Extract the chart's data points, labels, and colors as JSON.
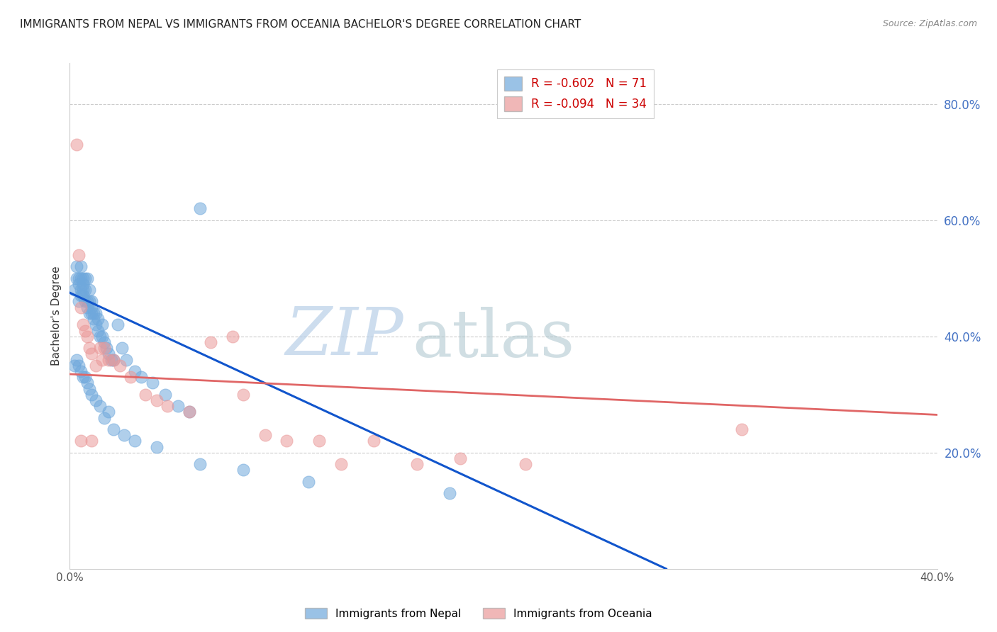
{
  "title": "IMMIGRANTS FROM NEPAL VS IMMIGRANTS FROM OCEANIA BACHELOR'S DEGREE CORRELATION CHART",
  "source": "Source: ZipAtlas.com",
  "ylabel": "Bachelor's Degree",
  "xmin": 0.0,
  "xmax": 0.4,
  "ymin": 0.0,
  "ymax": 0.87,
  "x_ticks": [
    0.0,
    0.1,
    0.2,
    0.3,
    0.4
  ],
  "x_tick_labels": [
    "0.0%",
    "",
    "",
    "",
    "40.0%"
  ],
  "y_ticks_right": [
    0.2,
    0.4,
    0.6,
    0.8
  ],
  "y_tick_labels_right": [
    "20.0%",
    "40.0%",
    "60.0%",
    "80.0%"
  ],
  "nepal_color": "#6fa8dc",
  "oceania_color": "#ea9999",
  "nepal_line_color": "#1155cc",
  "oceania_line_color": "#e06666",
  "legend_R_nepal": "R = -0.602",
  "legend_N_nepal": "N = 71",
  "legend_R_oceania": "R = -0.094",
  "legend_N_oceania": "N = 34",
  "legend_label_nepal": "Immigrants from Nepal",
  "legend_label_oceania": "Immigrants from Oceania",
  "nepal_line_x0": 0.0,
  "nepal_line_y0": 0.475,
  "nepal_line_x1": 0.275,
  "nepal_line_y1": 0.0,
  "oceania_line_x0": 0.0,
  "oceania_line_y0": 0.335,
  "oceania_line_x1": 0.4,
  "oceania_line_y1": 0.265,
  "nepal_x": [
    0.002,
    0.003,
    0.003,
    0.004,
    0.004,
    0.004,
    0.005,
    0.005,
    0.005,
    0.005,
    0.006,
    0.006,
    0.006,
    0.006,
    0.007,
    0.007,
    0.007,
    0.008,
    0.008,
    0.008,
    0.009,
    0.009,
    0.009,
    0.01,
    0.01,
    0.01,
    0.011,
    0.011,
    0.012,
    0.012,
    0.013,
    0.013,
    0.014,
    0.015,
    0.015,
    0.016,
    0.017,
    0.018,
    0.019,
    0.02,
    0.022,
    0.024,
    0.026,
    0.03,
    0.033,
    0.038,
    0.044,
    0.05,
    0.055,
    0.06,
    0.002,
    0.003,
    0.004,
    0.005,
    0.006,
    0.007,
    0.008,
    0.009,
    0.01,
    0.012,
    0.014,
    0.016,
    0.018,
    0.02,
    0.025,
    0.03,
    0.04,
    0.06,
    0.08,
    0.11,
    0.175
  ],
  "nepal_y": [
    0.48,
    0.5,
    0.52,
    0.46,
    0.49,
    0.5,
    0.48,
    0.47,
    0.5,
    0.52,
    0.47,
    0.49,
    0.48,
    0.5,
    0.46,
    0.48,
    0.5,
    0.45,
    0.46,
    0.5,
    0.44,
    0.46,
    0.48,
    0.44,
    0.45,
    0.46,
    0.43,
    0.44,
    0.42,
    0.44,
    0.41,
    0.43,
    0.4,
    0.4,
    0.42,
    0.39,
    0.38,
    0.37,
    0.36,
    0.36,
    0.42,
    0.38,
    0.36,
    0.34,
    0.33,
    0.32,
    0.3,
    0.28,
    0.27,
    0.62,
    0.35,
    0.36,
    0.35,
    0.34,
    0.33,
    0.33,
    0.32,
    0.31,
    0.3,
    0.29,
    0.28,
    0.26,
    0.27,
    0.24,
    0.23,
    0.22,
    0.21,
    0.18,
    0.17,
    0.15,
    0.13
  ],
  "oceania_x": [
    0.003,
    0.004,
    0.005,
    0.006,
    0.007,
    0.008,
    0.009,
    0.01,
    0.012,
    0.014,
    0.015,
    0.016,
    0.018,
    0.02,
    0.023,
    0.028,
    0.035,
    0.04,
    0.045,
    0.055,
    0.065,
    0.075,
    0.09,
    0.1,
    0.115,
    0.125,
    0.14,
    0.16,
    0.18,
    0.21,
    0.005,
    0.01,
    0.08,
    0.31
  ],
  "oceania_y": [
    0.73,
    0.54,
    0.45,
    0.42,
    0.41,
    0.4,
    0.38,
    0.37,
    0.35,
    0.38,
    0.36,
    0.38,
    0.36,
    0.36,
    0.35,
    0.33,
    0.3,
    0.29,
    0.28,
    0.27,
    0.39,
    0.4,
    0.23,
    0.22,
    0.22,
    0.18,
    0.22,
    0.18,
    0.19,
    0.18,
    0.22,
    0.22,
    0.3,
    0.24
  ]
}
